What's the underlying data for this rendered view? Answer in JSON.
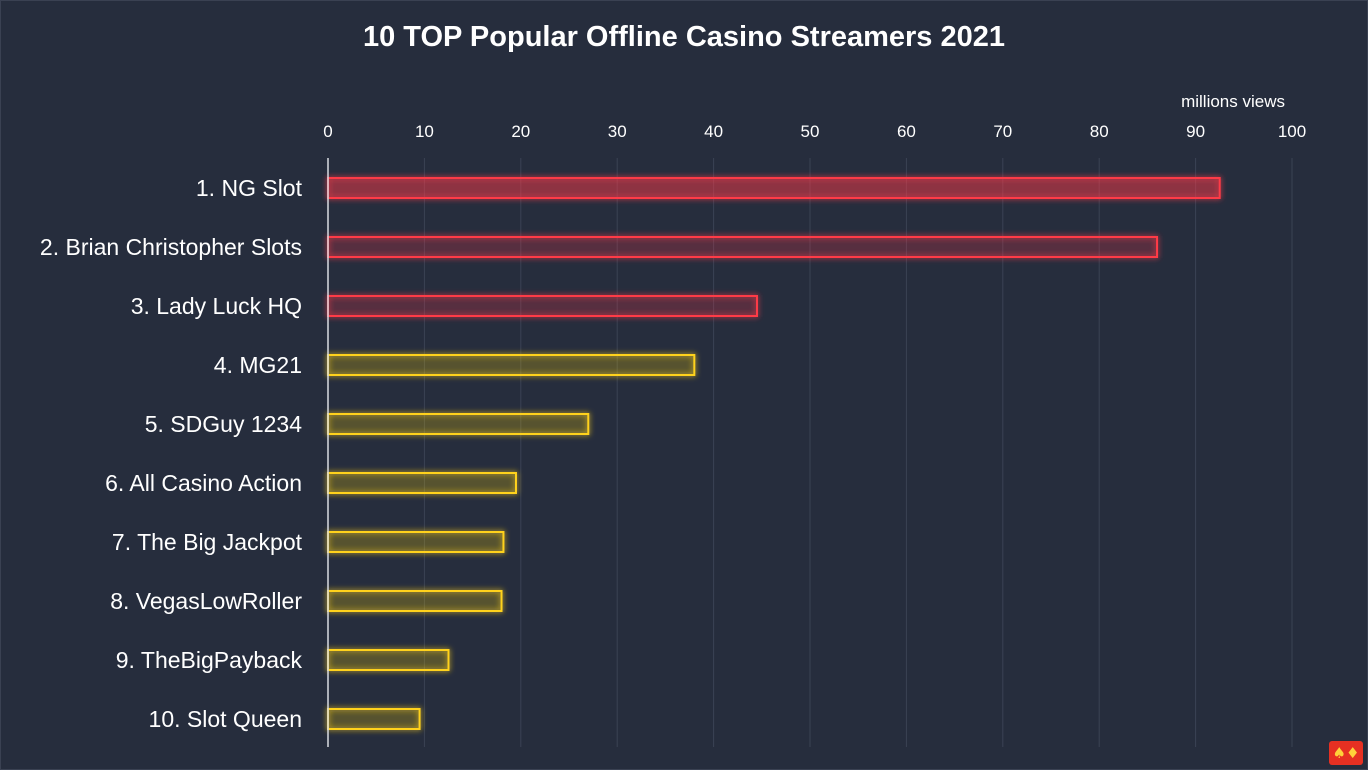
{
  "chart_data": {
    "type": "bar",
    "orientation": "horizontal",
    "title": "10 TOP Popular Offline Casino Streamers 2021",
    "unit_label": "millions views",
    "xlim": [
      0,
      100
    ],
    "x_ticks": [
      0,
      10,
      20,
      30,
      40,
      50,
      60,
      70,
      80,
      90,
      100
    ],
    "grid": true,
    "categories": [
      "1. NG Slot",
      "2. Brian Christopher Slots",
      "3. Lady Luck HQ",
      "4. MG21",
      "5. SDGuy 1234",
      "6. All Casino Action",
      "7. The Big Jackpot",
      "8. VegasLowRoller",
      "9. TheBigPayback",
      "10. Slot Queen"
    ],
    "values": [
      92.5,
      86,
      44.5,
      38,
      27,
      19.5,
      18.2,
      18,
      12.5,
      9.5
    ],
    "bar_colors": [
      "#ff3b47",
      "#ff3b47",
      "#ff3b47",
      "#ffd21f",
      "#ffd21f",
      "#ffd21f",
      "#ffd21f",
      "#ffd21f",
      "#ffd21f",
      "#ffd21f"
    ]
  },
  "colors": {
    "background": "#262d3d",
    "grid": "#3a4254",
    "text": "#ffffff",
    "highlight": "#ff3b47",
    "standard": "#ffd21f"
  },
  "logo": {
    "icon": "casino-logo-icon"
  }
}
